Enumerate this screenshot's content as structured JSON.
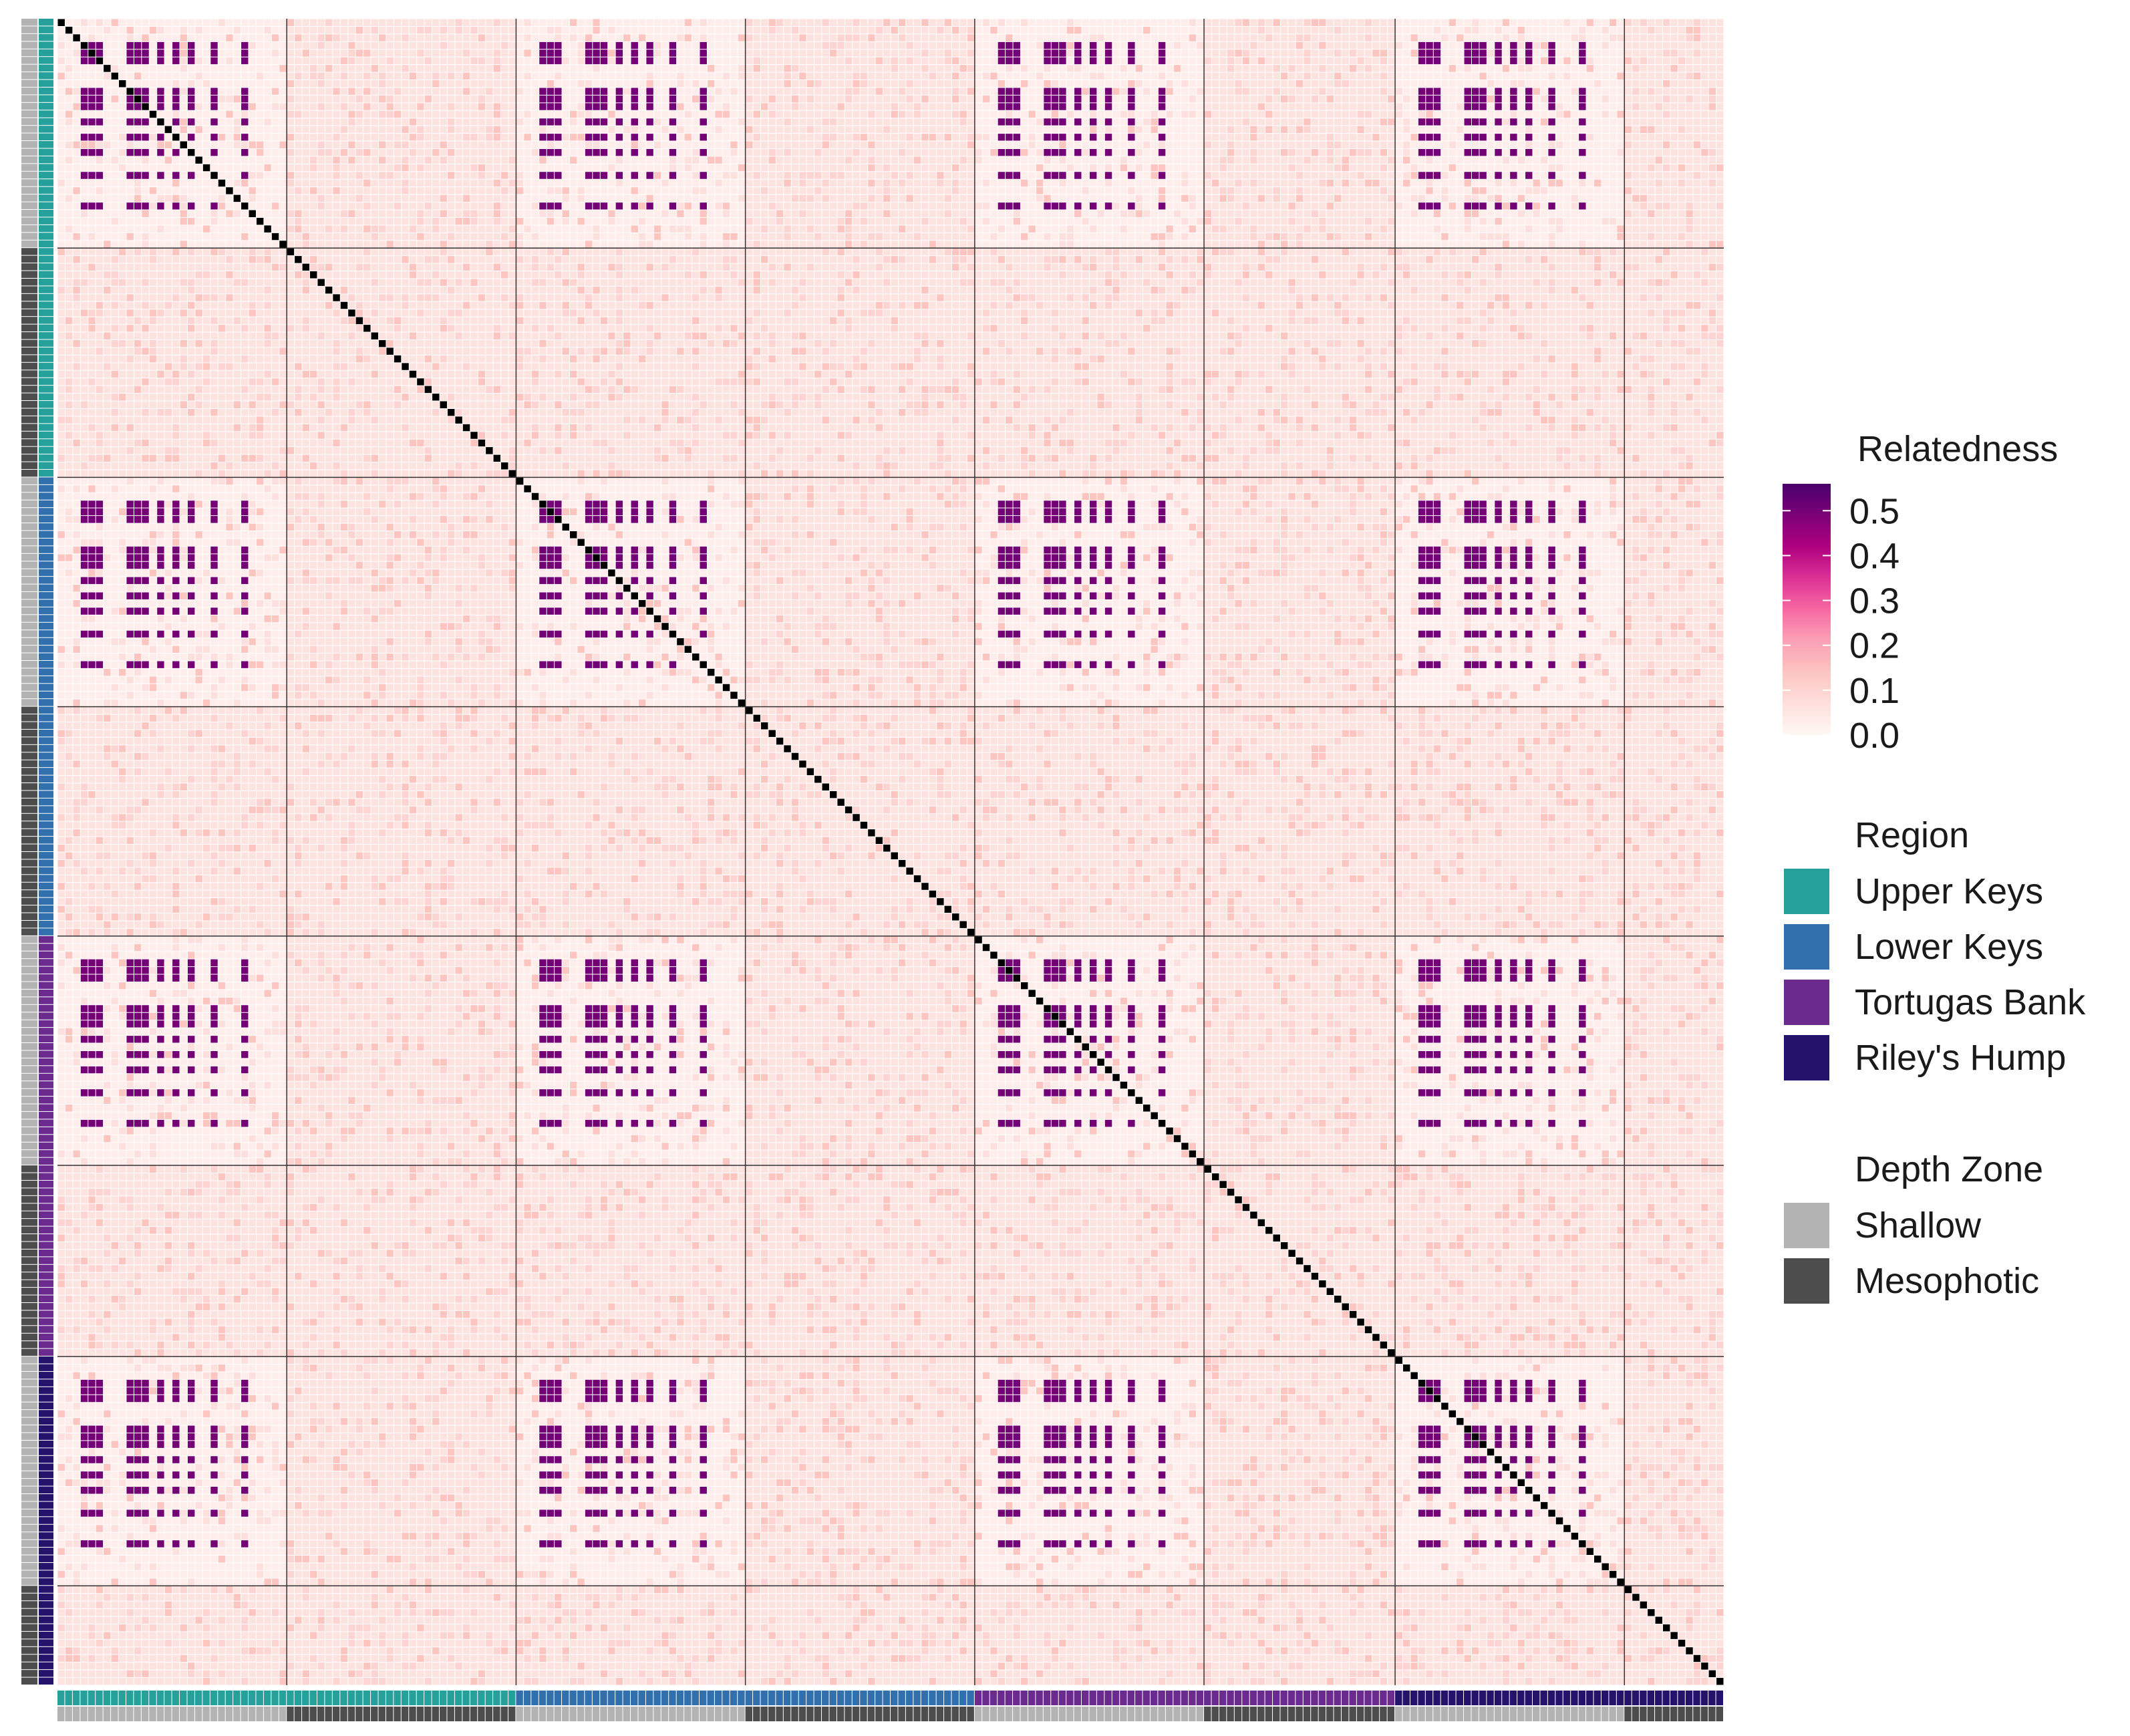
{
  "chart_data": {
    "type": "heatmap",
    "title": "",
    "legend_position": "right",
    "n_samples": 218,
    "groups": [
      {
        "region": "Upper Keys",
        "depth": "Shallow",
        "size": 30
      },
      {
        "region": "Upper Keys",
        "depth": "Mesophotic",
        "size": 30
      },
      {
        "region": "Lower Keys",
        "depth": "Shallow",
        "size": 30
      },
      {
        "region": "Lower Keys",
        "depth": "Mesophotic",
        "size": 30
      },
      {
        "region": "Tortugas Bank",
        "depth": "Shallow",
        "size": 30
      },
      {
        "region": "Tortugas Bank",
        "depth": "Mesophotic",
        "size": 25
      },
      {
        "region": "Riley's Hump",
        "depth": "Shallow",
        "size": 30
      },
      {
        "region": "Riley's Hump",
        "depth": "Mesophotic",
        "size": 13
      }
    ],
    "relatedness_scale": {
      "title": "Relatedness",
      "ticks": [
        "0.5",
        "0.4",
        "0.3",
        "0.2",
        "0.1",
        "0.0"
      ],
      "tick_values": [
        0.5,
        0.4,
        0.3,
        0.2,
        0.1,
        0.0
      ],
      "range": [
        0,
        0.56
      ],
      "colors": [
        "#fff7f3",
        "#fde0dd",
        "#fcc5c0",
        "#fa9fb5",
        "#f768a1",
        "#dd3497",
        "#ae017e",
        "#7a0177",
        "#49006a"
      ],
      "diagonal_value": 1.0,
      "diagonal_color": "#000000"
    },
    "related_blocks": {
      "description_values": {
        "background_shallow": 0.03,
        "background_mesophotic": 0.06,
        "clone_value": 0.5,
        "partial_value": 0.12
      },
      "clusters": [
        {
          "groups": [
            0,
            2,
            4,
            6
          ],
          "members": [
            [
              3,
              4,
              5,
              9,
              10,
              11,
              13,
              15,
              17
            ],
            [
              3,
              4,
              5,
              9,
              10,
              11,
              13,
              15,
              17
            ]
          ]
        }
      ]
    }
  },
  "legend": {
    "relatedness_title": "Relatedness",
    "region_title": "Region",
    "regions": [
      {
        "label": "Upper Keys",
        "color": "#26a09a"
      },
      {
        "label": "Lower Keys",
        "color": "#3170ad"
      },
      {
        "label": "Tortugas Bank",
        "color": "#6a2a8e"
      },
      {
        "label": "Riley's Hump",
        "color": "#24136b"
      }
    ],
    "depth_title": "Depth Zone",
    "depths": [
      {
        "label": "Shallow",
        "color": "#b3b3b3"
      },
      {
        "label": "Mesophotic",
        "color": "#4d4d4d"
      }
    ]
  }
}
